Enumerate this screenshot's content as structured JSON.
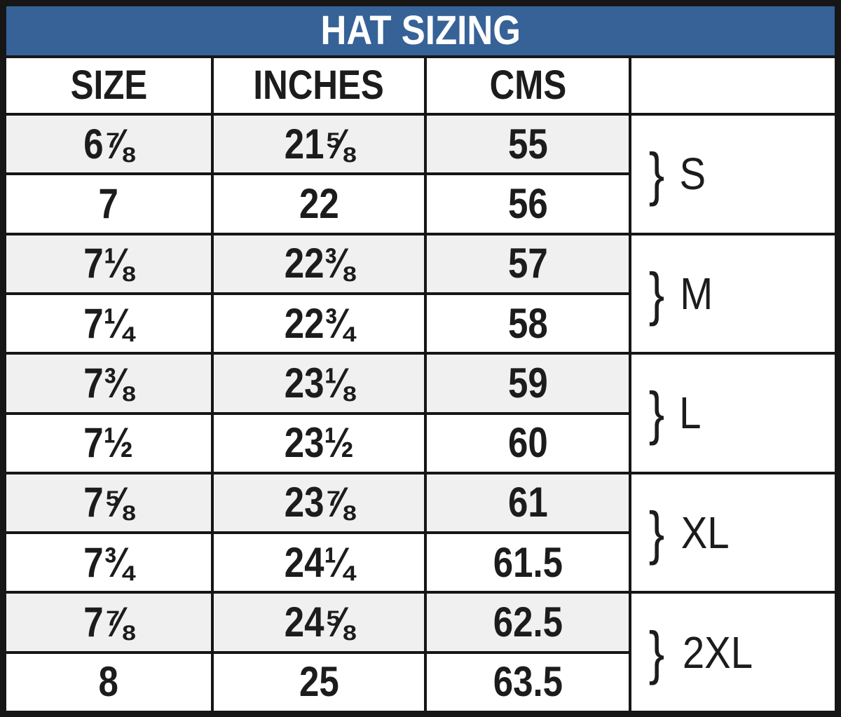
{
  "chart_data": {
    "type": "table",
    "title": "HAT SIZING",
    "columns": [
      "SIZE",
      "INCHES",
      "CMS",
      ""
    ],
    "rows": [
      {
        "size": "6⅞",
        "inches": "21⅝",
        "cms": "55"
      },
      {
        "size": "7",
        "inches": "22",
        "cms": "56"
      },
      {
        "size": "7⅛",
        "inches": "22⅜",
        "cms": "57"
      },
      {
        "size": "7¼",
        "inches": "22¾",
        "cms": "58"
      },
      {
        "size": "7⅜",
        "inches": "23⅛",
        "cms": "59"
      },
      {
        "size": "7½",
        "inches": "23½",
        "cms": "60"
      },
      {
        "size": "7⅝",
        "inches": "23⅞",
        "cms": "61"
      },
      {
        "size": "7¾",
        "inches": "24¼",
        "cms": "61.5"
      },
      {
        "size": "7⅞",
        "inches": "24⅝",
        "cms": "62.5"
      },
      {
        "size": "8",
        "inches": "25",
        "cms": "63.5"
      }
    ],
    "groups": [
      {
        "brace": "}",
        "label": "S",
        "row_span": [
          1,
          2
        ]
      },
      {
        "brace": "}",
        "label": "M",
        "row_span": [
          3,
          4
        ]
      },
      {
        "brace": "}",
        "label": "L",
        "row_span": [
          5,
          6
        ]
      },
      {
        "brace": "}",
        "label": "XL",
        "row_span": [
          7,
          8
        ]
      },
      {
        "brace": "}",
        "label": "2XL",
        "row_span": [
          9,
          10
        ]
      }
    ],
    "layout_hints": {
      "legend_position": "none",
      "grid": "on"
    }
  },
  "colors": {
    "title_bg": "#366297",
    "title_text": "#ffffff",
    "stripe_row_bg": "#f0f0f0",
    "plain_row_bg": "#ffffff",
    "border": "#161616",
    "body_text": "#1c1c1c"
  }
}
